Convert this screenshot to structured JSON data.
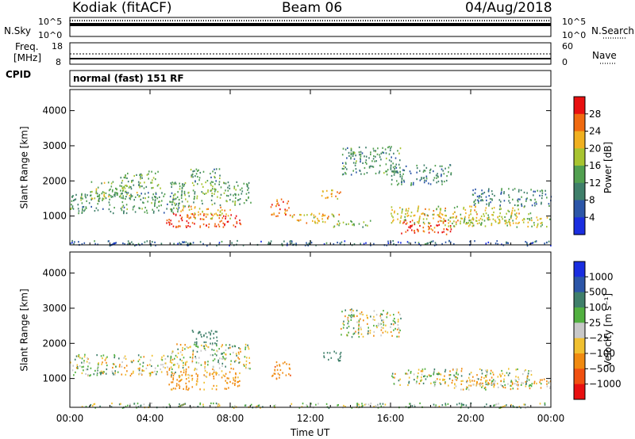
{
  "header": {
    "station": "Kodiak (fitACF)",
    "beam": "Beam 06",
    "date": "04/Aug/2018"
  },
  "noise_panel": {
    "left_label": "N.Sky",
    "right_label": "N.Search",
    "ticks_left": [
      "10^5",
      "10^0"
    ],
    "ticks_right": [
      "10^5",
      "10^0"
    ]
  },
  "freq_panel": {
    "left_label_1": "Freq.",
    "left_label_2": "[MHz]",
    "right_label": "Nave",
    "ticks_left": [
      "18",
      "8"
    ],
    "ticks_right": [
      "60",
      "0"
    ]
  },
  "cpid": {
    "label": "CPID",
    "value": "normal (fast) 151 RF"
  },
  "chart_data": [
    {
      "type": "heatmap",
      "title": "Power",
      "ylabel": "Slant Range [km]",
      "xlabel": "",
      "xlim": [
        "00:00",
        "24:00"
      ],
      "ylim": [
        180,
        4600
      ],
      "yticks": [
        1000,
        2000,
        3000,
        4000
      ],
      "colorbar_label": "Power [dB]",
      "colorbar_ticks": [
        4,
        8,
        12,
        16,
        20,
        24,
        28
      ],
      "colorbar_range": [
        0,
        32
      ],
      "colors": [
        "#1a2ee0",
        "#2c56a8",
        "#3f7f6a",
        "#52a050",
        "#a8c430",
        "#f0b020",
        "#f06a10",
        "#e81010"
      ],
      "regions": [
        {
          "t": [
            0.0,
            24.0
          ],
          "r": [
            180,
            320
          ],
          "v": 8
        },
        {
          "t": [
            0.0,
            5.5
          ],
          "r": [
            1100,
            1700
          ],
          "v": 12
        },
        {
          "t": [
            1.0,
            3.5
          ],
          "r": [
            1500,
            2000
          ],
          "v": 16
        },
        {
          "t": [
            2.5,
            4.5
          ],
          "r": [
            1800,
            2300
          ],
          "v": 14
        },
        {
          "t": [
            4.8,
            8.5
          ],
          "r": [
            700,
            1100
          ],
          "v": 28
        },
        {
          "t": [
            5.5,
            8.0
          ],
          "r": [
            950,
            1300
          ],
          "v": 22
        },
        {
          "t": [
            5.0,
            9.0
          ],
          "r": [
            1300,
            2000
          ],
          "v": 14
        },
        {
          "t": [
            6.0,
            7.5
          ],
          "r": [
            2000,
            2400
          ],
          "v": 12
        },
        {
          "t": [
            10.0,
            11.0
          ],
          "r": [
            1000,
            1500
          ],
          "v": 26
        },
        {
          "t": [
            11.0,
            13.5
          ],
          "r": [
            800,
            1100
          ],
          "v": 20
        },
        {
          "t": [
            12.5,
            13.5
          ],
          "r": [
            1500,
            1800
          ],
          "v": 22
        },
        {
          "t": [
            13.0,
            15.0
          ],
          "r": [
            700,
            900
          ],
          "v": 16
        },
        {
          "t": [
            13.5,
            16.5
          ],
          "r": [
            2200,
            3000
          ],
          "v": 12
        },
        {
          "t": [
            16.0,
            19.0
          ],
          "r": [
            1900,
            2500
          ],
          "v": 10
        },
        {
          "t": [
            16.5,
            19.0
          ],
          "r": [
            500,
            900
          ],
          "v": 28
        },
        {
          "t": [
            16.0,
            23.0
          ],
          "r": [
            800,
            1300
          ],
          "v": 20
        },
        {
          "t": [
            18.5,
            24.0
          ],
          "r": [
            700,
            1000
          ],
          "v": 18
        },
        {
          "t": [
            20.0,
            24.0
          ],
          "r": [
            1300,
            1800
          ],
          "v": 10
        }
      ]
    },
    {
      "type": "heatmap",
      "title": "Velocity",
      "ylabel": "Slant Range [km]",
      "xlabel": "Time UT",
      "xticks": [
        "00:00",
        "04:00",
        "08:00",
        "12:00",
        "16:00",
        "20:00",
        "00:00"
      ],
      "xlim": [
        "00:00",
        "24:00"
      ],
      "ylim": [
        180,
        4600
      ],
      "yticks": [
        1000,
        2000,
        3000,
        4000
      ],
      "colorbar_label": "Velocity [m s⁻¹]",
      "colorbar_ticks": [
        "1000",
        "500",
        "100",
        "25",
        "−25",
        "−100",
        "−500",
        "−1000"
      ],
      "colorbar_range": [
        -1200,
        1200
      ],
      "colors": [
        "#1a2ee0",
        "#2c56a8",
        "#3f7f6a",
        "#52b040",
        "#c8c8c8",
        "#f0c030",
        "#f08a10",
        "#f05010",
        "#e81010"
      ],
      "regions": [
        {
          "t": [
            0.0,
            24.0
          ],
          "r": [
            180,
            320
          ],
          "v": 60
        },
        {
          "t": [
            0.0,
            5.5
          ],
          "r": [
            1100,
            1700
          ],
          "v": 0
        },
        {
          "t": [
            4.8,
            8.5
          ],
          "r": [
            700,
            1300
          ],
          "v": -150
        },
        {
          "t": [
            5.0,
            9.0
          ],
          "r": [
            1300,
            2000
          ],
          "v": 0
        },
        {
          "t": [
            6.0,
            7.5
          ],
          "r": [
            2000,
            2400
          ],
          "v": 300
        },
        {
          "t": [
            10.0,
            11.0
          ],
          "r": [
            1000,
            1500
          ],
          "v": -400
        },
        {
          "t": [
            12.5,
            13.5
          ],
          "r": [
            1500,
            1800
          ],
          "v": 300
        },
        {
          "t": [
            13.5,
            16.5
          ],
          "r": [
            2200,
            3000
          ],
          "v": 0
        },
        {
          "t": [
            16.0,
            23.0
          ],
          "r": [
            800,
            1300
          ],
          "v": 0
        },
        {
          "t": [
            18.5,
            24.0
          ],
          "r": [
            700,
            1000
          ],
          "v": -60
        }
      ]
    }
  ]
}
